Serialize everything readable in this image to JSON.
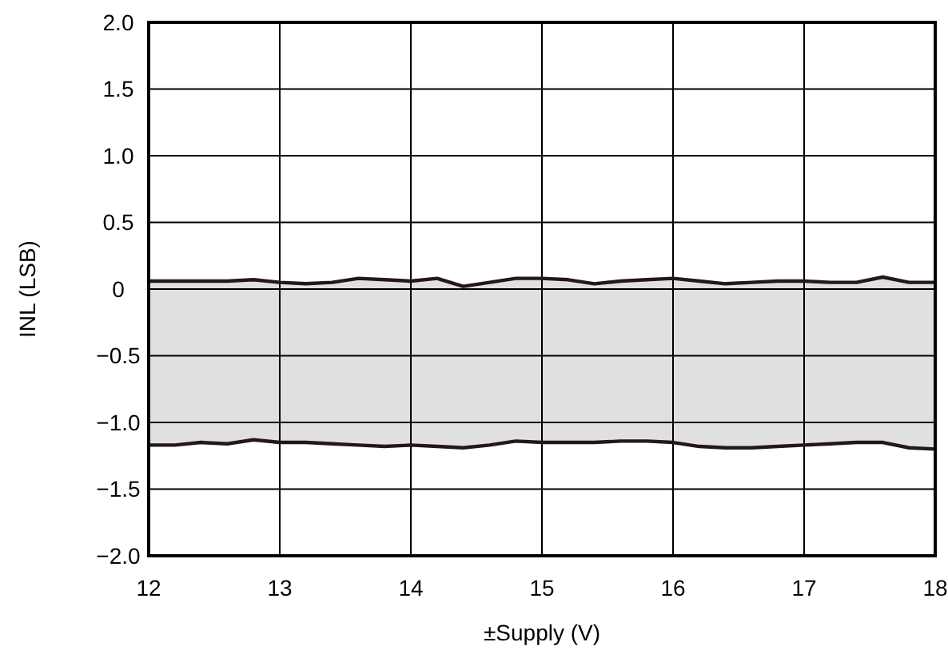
{
  "chart_data": {
    "type": "line",
    "xlabel": "±Supply (V)",
    "ylabel": "INL (LSB)",
    "x": [
      12,
      12.2,
      12.4,
      12.6,
      12.8,
      13,
      13.2,
      13.4,
      13.6,
      13.8,
      14,
      14.2,
      14.4,
      14.6,
      14.8,
      15,
      15.2,
      15.4,
      15.6,
      15.8,
      16,
      16.2,
      16.4,
      16.6,
      16.8,
      17,
      17.2,
      17.4,
      17.6,
      17.8,
      18
    ],
    "series": [
      {
        "color": "#231815",
        "values": [
          0.06,
          0.06,
          0.06,
          0.06,
          0.07,
          0.05,
          0.04,
          0.05,
          0.08,
          0.07,
          0.06,
          0.08,
          0.02,
          0.05,
          0.08,
          0.08,
          0.07,
          0.04,
          0.06,
          0.07,
          0.08,
          0.06,
          0.04,
          0.05,
          0.06,
          0.06,
          0.05,
          0.05,
          0.09,
          0.05,
          0.05
        ],
        "upper": [
          0.06,
          0.06,
          0.06,
          0.06,
          0.07,
          0.05,
          0.04,
          0.05,
          0.08,
          0.07,
          0.06,
          0.08,
          0.02,
          0.05,
          0.08,
          0.08,
          0.07,
          0.04,
          0.06,
          0.07,
          0.08,
          0.06,
          0.04,
          0.05,
          0.06,
          0.06,
          0.05,
          0.05,
          0.09,
          0.05,
          0.05
        ],
        "lower": [
          -1.17,
          -1.17,
          -1.15,
          -1.16,
          -1.13,
          -1.15,
          -1.15,
          -1.16,
          -1.17,
          -1.18,
          -1.17,
          -1.18,
          -1.19,
          -1.17,
          -1.14,
          -1.15,
          -1.15,
          -1.15,
          -1.14,
          -1.14,
          -1.15,
          -1.18,
          -1.19,
          -1.19,
          -1.18,
          -1.17,
          -1.16,
          -1.15,
          -1.15,
          -1.19,
          -1.2
        ]
      },
      {
        "color": "#231815",
        "values": [
          -1.17,
          -1.17,
          -1.15,
          -1.16,
          -1.13,
          -1.15,
          -1.15,
          -1.16,
          -1.17,
          -1.18,
          -1.17,
          -1.18,
          -1.19,
          -1.17,
          -1.14,
          -1.15,
          -1.15,
          -1.15,
          -1.14,
          -1.14,
          -1.15,
          -1.18,
          -1.19,
          -1.19,
          -1.18,
          -1.17,
          -1.16,
          -1.15,
          -1.15,
          -1.19,
          -1.2
        ]
      }
    ],
    "xlim": [
      12,
      18
    ],
    "xticks": [
      12,
      13,
      14,
      15,
      16,
      17,
      18
    ],
    "ylim": [
      -2,
      2
    ],
    "yticks": [
      {
        "value": -2,
        "label": "−2.0"
      },
      {
        "value": -1.5,
        "label": "−1.5"
      },
      {
        "value": -1,
        "label": "−1.0"
      },
      {
        "value": -0.5,
        "label": "−0.5"
      },
      0,
      0.5,
      {
        "value": 1,
        "label": "1.0"
      },
      1.5,
      {
        "value": 2,
        "label": "2.0"
      }
    ],
    "grid": true,
    "marker": "none",
    "line_style": "solid"
  }
}
